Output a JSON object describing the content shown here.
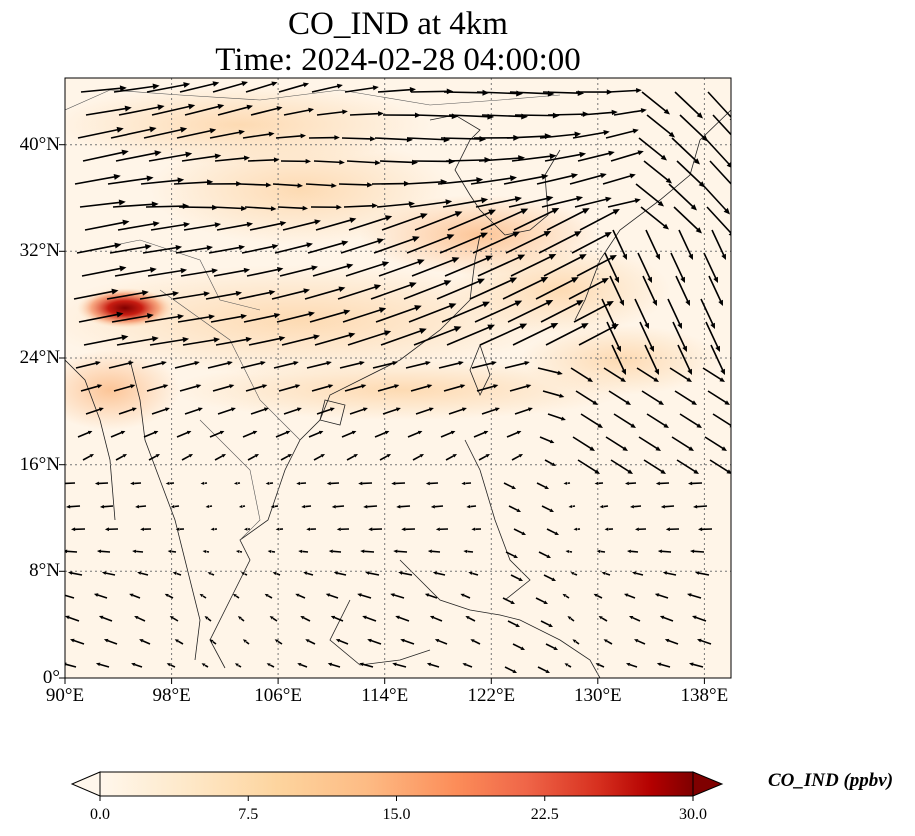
{
  "title_line1": "CO_IND at 4km",
  "title_line2": "Time: 2024-02-28 04:00:00",
  "lat_ticks": [
    "40°N",
    "32°N",
    "24°N",
    "16°N",
    "8°N",
    "0°"
  ],
  "lat_values": [
    40,
    32,
    24,
    16,
    8,
    0
  ],
  "lon_ticks": [
    "90°E",
    "98°E",
    "106°E",
    "114°E",
    "122°E",
    "130°E",
    "138°E"
  ],
  "lon_values": [
    90,
    98,
    106,
    114,
    122,
    130,
    138
  ],
  "extent": {
    "lon": [
      90,
      140
    ],
    "lat": [
      0,
      45
    ]
  },
  "colorbar": {
    "label": "CO_IND (ppbv)",
    "ticks": [
      "0.0",
      "7.5",
      "15.0",
      "22.5",
      "30.0"
    ],
    "tick_values": [
      0,
      7.5,
      15,
      22.5,
      30
    ],
    "range": [
      0,
      30
    ],
    "colormap": "OrRd",
    "extend": "both"
  },
  "colors": {
    "low": "#fff5e8",
    "mid": "#fdbb84",
    "high": "#d7301f",
    "max": "#7f0000"
  },
  "grid": true
}
